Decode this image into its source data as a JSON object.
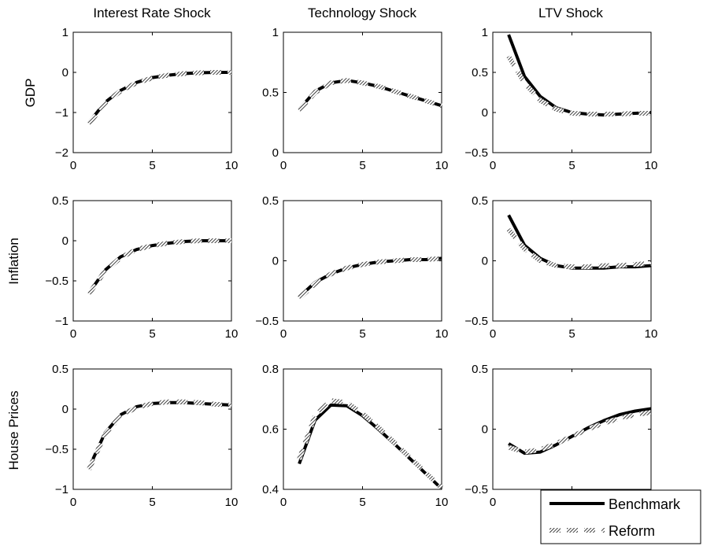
{
  "legend": {
    "benchmark_label": "Benchmark",
    "reform_label": "Reform"
  },
  "columns": [
    "Interest Rate Shock",
    "Technology Shock",
    "LTV Shock"
  ],
  "rows": [
    "GDP",
    "Inflation",
    "House Prices"
  ],
  "chart_data": [
    {
      "type": "line",
      "row": "GDP",
      "column": "Interest Rate Shock",
      "xlim": [
        0,
        10
      ],
      "ylim": [
        -2,
        1
      ],
      "xticks": [
        0,
        5,
        10
      ],
      "yticks": [
        -2,
        -1,
        0,
        1
      ],
      "x": [
        1,
        2,
        3,
        4,
        5,
        6,
        7,
        8,
        9,
        10
      ],
      "series": [
        {
          "name": "Benchmark",
          "values": [
            -1.25,
            -0.75,
            -0.45,
            -0.25,
            -0.13,
            -0.07,
            -0.03,
            -0.01,
            0.0,
            0.0
          ]
        },
        {
          "name": "Reform",
          "values": [
            -1.28,
            -0.77,
            -0.46,
            -0.26,
            -0.14,
            -0.07,
            -0.03,
            -0.01,
            0.0,
            0.0
          ]
        }
      ]
    },
    {
      "type": "line",
      "row": "GDP",
      "column": "Technology Shock",
      "xlim": [
        0,
        10
      ],
      "ylim": [
        0,
        1
      ],
      "xticks": [
        0,
        5,
        10
      ],
      "yticks": [
        0,
        0.5,
        1
      ],
      "x": [
        1,
        2,
        3,
        4,
        5,
        6,
        7,
        8,
        9,
        10
      ],
      "series": [
        {
          "name": "Benchmark",
          "values": [
            0.36,
            0.51,
            0.58,
            0.6,
            0.58,
            0.55,
            0.51,
            0.47,
            0.43,
            0.39
          ]
        },
        {
          "name": "Reform",
          "values": [
            0.35,
            0.5,
            0.58,
            0.6,
            0.58,
            0.55,
            0.51,
            0.47,
            0.43,
            0.39
          ]
        }
      ]
    },
    {
      "type": "line",
      "row": "GDP",
      "column": "LTV Shock",
      "xlim": [
        0,
        10
      ],
      "ylim": [
        -0.5,
        1
      ],
      "xticks": [
        0,
        5,
        10
      ],
      "yticks": [
        -0.5,
        0,
        0.5,
        1
      ],
      "x": [
        1,
        2,
        3,
        4,
        5,
        6,
        7,
        8,
        9,
        10
      ],
      "series": [
        {
          "name": "Benchmark",
          "values": [
            0.97,
            0.45,
            0.2,
            0.06,
            0.0,
            -0.02,
            -0.03,
            -0.02,
            -0.01,
            0.0
          ]
        },
        {
          "name": "Reform",
          "values": [
            0.7,
            0.37,
            0.15,
            0.04,
            -0.01,
            -0.02,
            -0.02,
            -0.02,
            -0.01,
            -0.01
          ]
        }
      ]
    },
    {
      "type": "line",
      "row": "Inflation",
      "column": "Interest Rate Shock",
      "xlim": [
        0,
        10
      ],
      "ylim": [
        -1,
        0.5
      ],
      "xticks": [
        0,
        5,
        10
      ],
      "yticks": [
        -1,
        -0.5,
        0,
        0.5
      ],
      "x": [
        1,
        2,
        3,
        4,
        5,
        6,
        7,
        8,
        9,
        10
      ],
      "series": [
        {
          "name": "Benchmark",
          "values": [
            -0.65,
            -0.37,
            -0.2,
            -0.11,
            -0.06,
            -0.03,
            -0.01,
            0.0,
            0.0,
            0.0
          ]
        },
        {
          "name": "Reform",
          "values": [
            -0.66,
            -0.38,
            -0.21,
            -0.11,
            -0.06,
            -0.03,
            -0.01,
            0.0,
            0.0,
            0.0
          ]
        }
      ]
    },
    {
      "type": "line",
      "row": "Inflation",
      "column": "Technology Shock",
      "xlim": [
        0,
        10
      ],
      "ylim": [
        -0.5,
        0.5
      ],
      "xticks": [
        0,
        5,
        10
      ],
      "yticks": [
        -0.5,
        0,
        0.5
      ],
      "x": [
        1,
        2,
        3,
        4,
        5,
        6,
        7,
        8,
        9,
        10
      ],
      "series": [
        {
          "name": "Benchmark",
          "values": [
            -0.3,
            -0.18,
            -0.11,
            -0.06,
            -0.03,
            -0.01,
            0.0,
            0.01,
            0.01,
            0.02
          ]
        },
        {
          "name": "Reform",
          "values": [
            -0.31,
            -0.19,
            -0.11,
            -0.06,
            -0.03,
            -0.01,
            0.0,
            0.01,
            0.01,
            0.02
          ]
        }
      ]
    },
    {
      "type": "line",
      "row": "Inflation",
      "column": "LTV Shock",
      "xlim": [
        0,
        10
      ],
      "ylim": [
        -0.5,
        0.5
      ],
      "xticks": [
        0,
        5,
        10
      ],
      "yticks": [
        -0.5,
        0,
        0.5
      ],
      "x": [
        1,
        2,
        3,
        4,
        5,
        6,
        7,
        8,
        9,
        10
      ],
      "series": [
        {
          "name": "Benchmark",
          "values": [
            0.38,
            0.13,
            0.02,
            -0.04,
            -0.06,
            -0.06,
            -0.06,
            -0.05,
            -0.05,
            -0.04
          ]
        },
        {
          "name": "Reform",
          "values": [
            0.26,
            0.1,
            0.0,
            -0.04,
            -0.05,
            -0.05,
            -0.04,
            -0.04,
            -0.03,
            -0.02
          ]
        }
      ]
    },
    {
      "type": "line",
      "row": "House Prices",
      "column": "Interest Rate Shock",
      "xlim": [
        0,
        10
      ],
      "ylim": [
        -1,
        0.5
      ],
      "xticks": [
        0,
        5,
        10
      ],
      "yticks": [
        -1,
        -0.5,
        0,
        0.5
      ],
      "x": [
        1,
        2,
        3,
        4,
        5,
        6,
        7,
        8,
        9,
        10
      ],
      "series": [
        {
          "name": "Benchmark",
          "values": [
            -0.73,
            -0.3,
            -0.07,
            0.03,
            0.07,
            0.08,
            0.08,
            0.07,
            0.06,
            0.05
          ]
        },
        {
          "name": "Reform",
          "values": [
            -0.75,
            -0.32,
            -0.08,
            0.02,
            0.07,
            0.09,
            0.09,
            0.08,
            0.06,
            0.05
          ]
        }
      ]
    },
    {
      "type": "line",
      "row": "House Prices",
      "column": "Technology Shock",
      "xlim": [
        0,
        10
      ],
      "ylim": [
        0.4,
        0.8
      ],
      "xticks": [
        0,
        5,
        10
      ],
      "yticks": [
        0.4,
        0.6,
        0.8
      ],
      "x": [
        1,
        2,
        3,
        4,
        5,
        6,
        7,
        8,
        9,
        10
      ],
      "series": [
        {
          "name": "Benchmark",
          "values": [
            0.485,
            0.63,
            0.68,
            0.678,
            0.645,
            0.6,
            0.552,
            0.502,
            0.452,
            0.402
          ]
        },
        {
          "name": "Reform",
          "values": [
            0.5,
            0.645,
            0.695,
            0.688,
            0.652,
            0.606,
            0.556,
            0.505,
            0.455,
            0.405
          ]
        }
      ]
    },
    {
      "type": "line",
      "row": "House Prices",
      "column": "LTV Shock",
      "xlim": [
        0,
        10
      ],
      "ylim": [
        -0.5,
        0.5
      ],
      "xticks": [
        0,
        5,
        10
      ],
      "yticks": [
        -0.5,
        0,
        0.5
      ],
      "x": [
        1,
        2,
        3,
        4,
        5,
        6,
        7,
        8,
        9,
        10
      ],
      "series": [
        {
          "name": "Benchmark",
          "values": [
            -0.12,
            -0.2,
            -0.19,
            -0.13,
            -0.06,
            0.01,
            0.07,
            0.12,
            0.15,
            0.17
          ]
        },
        {
          "name": "Reform",
          "values": [
            -0.15,
            -0.19,
            -0.17,
            -0.12,
            -0.06,
            0.0,
            0.05,
            0.09,
            0.12,
            0.14
          ]
        }
      ]
    }
  ]
}
